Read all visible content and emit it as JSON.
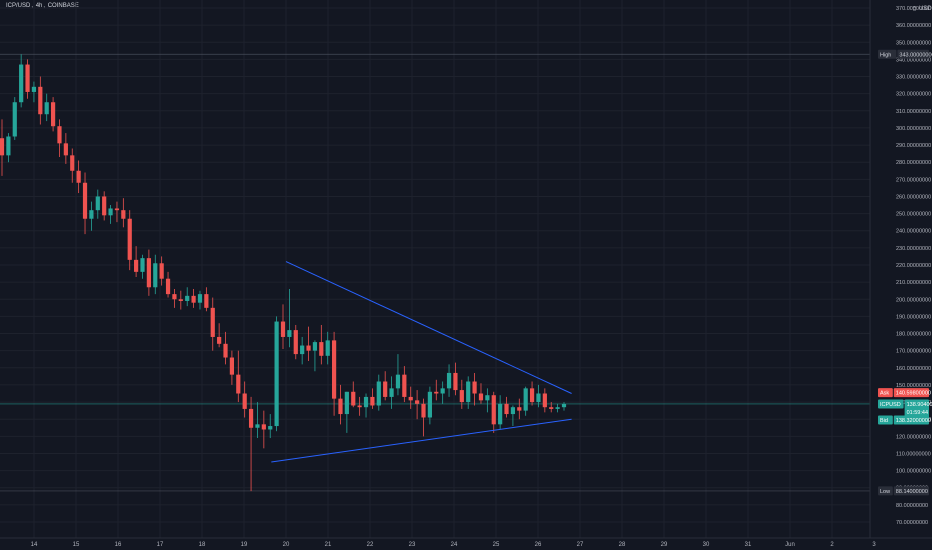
{
  "header": {
    "symbol": "ICP/USD",
    "interval": "4h",
    "exchange": "COINBASE"
  },
  "price_axis": {
    "currency": "USD",
    "currency_icon": "arrow-icon",
    "labels": [
      "370.00000000",
      "360.00000000",
      "350.00000000",
      "340.00000000",
      "330.00000000",
      "320.00000000",
      "310.00000000",
      "300.00000000",
      "290.00000000",
      "280.00000000",
      "270.00000000",
      "260.00000000",
      "250.00000000",
      "240.00000000",
      "230.00000000",
      "220.00000000",
      "210.00000000",
      "200.00000000",
      "190.00000000",
      "180.00000000",
      "170.00000000",
      "160.00000000",
      "150.00000000",
      "140.00000000",
      "130.00000000",
      "120.00000000",
      "110.00000000",
      "100.00000000",
      "90.00000000",
      "80.00000000",
      "70.00000000"
    ]
  },
  "badges": {
    "high": {
      "label": "High",
      "value": "343.00000000"
    },
    "ask": {
      "label": "Ask",
      "value": "140.59800000"
    },
    "last": {
      "label": "ICPUSD",
      "value": "138.90400000",
      "countdown": "01:59:44"
    },
    "bid": {
      "label": "Bid",
      "value": "138.32000000"
    },
    "low": {
      "label": "Low",
      "value": "88.14000000"
    }
  },
  "time_axis": {
    "labels": [
      "14",
      "15",
      "16",
      "17",
      "18",
      "19",
      "20",
      "21",
      "22",
      "23",
      "24",
      "25",
      "26",
      "27",
      "28",
      "29",
      "30",
      "31",
      "Jun",
      "2",
      "3"
    ]
  },
  "colors": {
    "background": "#131722",
    "up": "#26a69a",
    "down": "#ef5350",
    "trendline": "#2962ff",
    "grid": "#1e222d",
    "text": "#b2b5be"
  },
  "chart_data": {
    "type": "candlestick",
    "yscale": "linear",
    "ylim": [
      65,
      375
    ],
    "grid": true,
    "candles": [
      {
        "o": 294,
        "h": 305,
        "l": 272,
        "c": 284
      },
      {
        "o": 284,
        "h": 297,
        "l": 280,
        "c": 295
      },
      {
        "o": 295,
        "h": 318,
        "l": 293,
        "c": 315
      },
      {
        "o": 315,
        "h": 343,
        "l": 312,
        "c": 337
      },
      {
        "o": 337,
        "h": 340,
        "l": 317,
        "c": 321
      },
      {
        "o": 321,
        "h": 327,
        "l": 315,
        "c": 324
      },
      {
        "o": 324,
        "h": 330,
        "l": 302,
        "c": 308
      },
      {
        "o": 308,
        "h": 320,
        "l": 304,
        "c": 315
      },
      {
        "o": 315,
        "h": 318,
        "l": 298,
        "c": 301
      },
      {
        "o": 301,
        "h": 305,
        "l": 283,
        "c": 291
      },
      {
        "o": 291,
        "h": 297,
        "l": 279,
        "c": 284
      },
      {
        "o": 284,
        "h": 288,
        "l": 268,
        "c": 275
      },
      {
        "o": 275,
        "h": 281,
        "l": 262,
        "c": 268
      },
      {
        "o": 268,
        "h": 274,
        "l": 238,
        "c": 247
      },
      {
        "o": 247,
        "h": 257,
        "l": 240,
        "c": 252
      },
      {
        "o": 252,
        "h": 264,
        "l": 247,
        "c": 260
      },
      {
        "o": 260,
        "h": 263,
        "l": 246,
        "c": 249
      },
      {
        "o": 249,
        "h": 255,
        "l": 244,
        "c": 253
      },
      {
        "o": 253,
        "h": 257,
        "l": 245,
        "c": 252
      },
      {
        "o": 252,
        "h": 259,
        "l": 242,
        "c": 247
      },
      {
        "o": 247,
        "h": 252,
        "l": 217,
        "c": 223
      },
      {
        "o": 223,
        "h": 231,
        "l": 213,
        "c": 216
      },
      {
        "o": 216,
        "h": 226,
        "l": 212,
        "c": 224
      },
      {
        "o": 224,
        "h": 229,
        "l": 202,
        "c": 207
      },
      {
        "o": 207,
        "h": 226,
        "l": 203,
        "c": 221
      },
      {
        "o": 221,
        "h": 225,
        "l": 208,
        "c": 212
      },
      {
        "o": 212,
        "h": 216,
        "l": 201,
        "c": 203
      },
      {
        "o": 203,
        "h": 206,
        "l": 195,
        "c": 200
      },
      {
        "o": 200,
        "h": 205,
        "l": 194,
        "c": 199
      },
      {
        "o": 199,
        "h": 207,
        "l": 196,
        "c": 202
      },
      {
        "o": 202,
        "h": 206,
        "l": 195,
        "c": 198
      },
      {
        "o": 198,
        "h": 205,
        "l": 194,
        "c": 203
      },
      {
        "o": 203,
        "h": 207,
        "l": 193,
        "c": 195
      },
      {
        "o": 195,
        "h": 201,
        "l": 170,
        "c": 178
      },
      {
        "o": 178,
        "h": 186,
        "l": 172,
        "c": 174
      },
      {
        "o": 174,
        "h": 181,
        "l": 162,
        "c": 166
      },
      {
        "o": 166,
        "h": 170,
        "l": 150,
        "c": 156
      },
      {
        "o": 156,
        "h": 170,
        "l": 140,
        "c": 145
      },
      {
        "o": 145,
        "h": 152,
        "l": 131,
        "c": 136
      },
      {
        "o": 136,
        "h": 143,
        "l": 88,
        "c": 125
      },
      {
        "o": 125,
        "h": 140,
        "l": 119,
        "c": 127
      },
      {
        "o": 127,
        "h": 135,
        "l": 113,
        "c": 124
      },
      {
        "o": 124,
        "h": 133,
        "l": 119,
        "c": 126
      },
      {
        "o": 126,
        "h": 190,
        "l": 123,
        "c": 187
      },
      {
        "o": 187,
        "h": 197,
        "l": 171,
        "c": 178
      },
      {
        "o": 178,
        "h": 206,
        "l": 172,
        "c": 182
      },
      {
        "o": 182,
        "h": 185,
        "l": 165,
        "c": 168
      },
      {
        "o": 168,
        "h": 178,
        "l": 162,
        "c": 173
      },
      {
        "o": 173,
        "h": 184,
        "l": 164,
        "c": 170
      },
      {
        "o": 170,
        "h": 176,
        "l": 158,
        "c": 175
      },
      {
        "o": 175,
        "h": 185,
        "l": 162,
        "c": 167
      },
      {
        "o": 167,
        "h": 181,
        "l": 162,
        "c": 176
      },
      {
        "o": 176,
        "h": 181,
        "l": 132,
        "c": 142
      },
      {
        "o": 142,
        "h": 150,
        "l": 127,
        "c": 133
      },
      {
        "o": 133,
        "h": 146,
        "l": 122,
        "c": 146
      },
      {
        "o": 146,
        "h": 152,
        "l": 137,
        "c": 138
      },
      {
        "o": 138,
        "h": 143,
        "l": 132,
        "c": 137
      },
      {
        "o": 137,
        "h": 145,
        "l": 131,
        "c": 143
      },
      {
        "o": 143,
        "h": 148,
        "l": 136,
        "c": 138
      },
      {
        "o": 138,
        "h": 156,
        "l": 135,
        "c": 152
      },
      {
        "o": 152,
        "h": 158,
        "l": 141,
        "c": 143
      },
      {
        "o": 143,
        "h": 155,
        "l": 136,
        "c": 148
      },
      {
        "o": 148,
        "h": 168,
        "l": 144,
        "c": 156
      },
      {
        "o": 156,
        "h": 161,
        "l": 140,
        "c": 143
      },
      {
        "o": 143,
        "h": 149,
        "l": 136,
        "c": 141
      },
      {
        "o": 141,
        "h": 147,
        "l": 130,
        "c": 139
      },
      {
        "o": 139,
        "h": 142,
        "l": 120,
        "c": 131
      },
      {
        "o": 131,
        "h": 149,
        "l": 127,
        "c": 146
      },
      {
        "o": 146,
        "h": 153,
        "l": 141,
        "c": 145
      },
      {
        "o": 145,
        "h": 152,
        "l": 139,
        "c": 148
      },
      {
        "o": 148,
        "h": 162,
        "l": 143,
        "c": 157
      },
      {
        "o": 157,
        "h": 163,
        "l": 144,
        "c": 147
      },
      {
        "o": 147,
        "h": 153,
        "l": 136,
        "c": 140
      },
      {
        "o": 140,
        "h": 155,
        "l": 136,
        "c": 152
      },
      {
        "o": 152,
        "h": 157,
        "l": 138,
        "c": 145
      },
      {
        "o": 145,
        "h": 151,
        "l": 139,
        "c": 141
      },
      {
        "o": 141,
        "h": 148,
        "l": 134,
        "c": 144
      },
      {
        "o": 144,
        "h": 146,
        "l": 122,
        "c": 127
      },
      {
        "o": 127,
        "h": 144,
        "l": 124,
        "c": 139
      },
      {
        "o": 139,
        "h": 143,
        "l": 131,
        "c": 133
      },
      {
        "o": 133,
        "h": 138,
        "l": 126,
        "c": 137
      },
      {
        "o": 137,
        "h": 142,
        "l": 130,
        "c": 135
      },
      {
        "o": 135,
        "h": 149,
        "l": 132,
        "c": 148
      },
      {
        "o": 148,
        "h": 152,
        "l": 138,
        "c": 140
      },
      {
        "o": 140,
        "h": 150,
        "l": 137,
        "c": 145
      },
      {
        "o": 145,
        "h": 148,
        "l": 134,
        "c": 137
      },
      {
        "o": 137,
        "h": 140,
        "l": 134,
        "c": 136
      },
      {
        "o": 136,
        "h": 139,
        "l": 134,
        "c": 137
      },
      {
        "o": 137,
        "h": 140,
        "l": 135,
        "c": 138.904
      }
    ],
    "trendlines": [
      {
        "name": "upper",
        "from": {
          "t": "20",
          "y": 222
        },
        "to": {
          "t": "26.8",
          "y": 145
        }
      },
      {
        "name": "lower",
        "from": {
          "t": "19.65",
          "y": 105
        },
        "to": {
          "t": "26.8",
          "y": 130
        }
      }
    ],
    "horizontal_lines": [
      {
        "name": "high",
        "y": 343
      },
      {
        "name": "last",
        "y": 138.904
      },
      {
        "name": "low",
        "y": 88.14
      }
    ]
  }
}
